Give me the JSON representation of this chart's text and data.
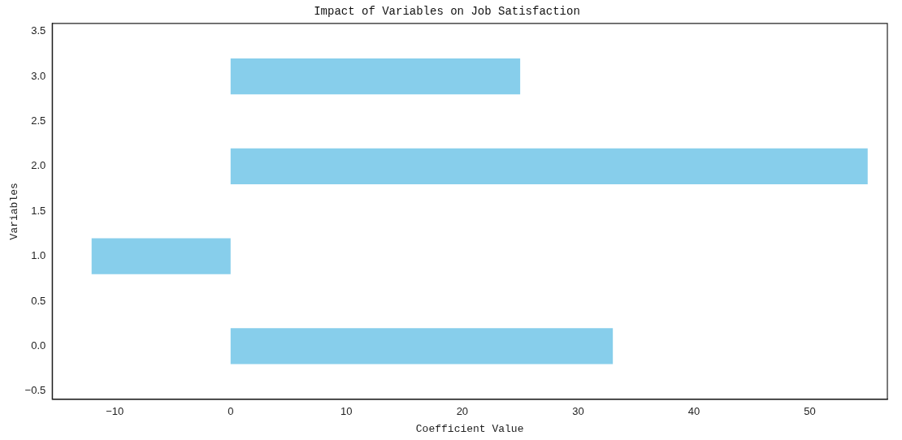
{
  "chart_data": {
    "type": "bar",
    "orientation": "horizontal",
    "title": "Impact of Variables on Job Satisfaction",
    "xlabel": "Coefficient Value",
    "ylabel": "Variables",
    "x": [
      0,
      1,
      2,
      3
    ],
    "values": [
      33,
      -12,
      55,
      25
    ],
    "color": "#87ceeb",
    "xlim": [
      -15.4,
      56.7
    ],
    "xticks": [
      {
        "value": -10,
        "label": "−10"
      },
      0,
      10,
      20,
      30,
      40,
      50
    ],
    "ylim": [
      -0.59,
      3.59
    ],
    "yticks": [
      {
        "value": -0.5,
        "label": "−0.5"
      },
      {
        "value": 0,
        "label": "0.0"
      },
      0.5,
      {
        "value": 1,
        "label": "1.0"
      },
      1.5,
      {
        "value": 2,
        "label": "2.0"
      },
      2.5,
      {
        "value": 3,
        "label": "3.0"
      },
      3.5
    ],
    "grid": false,
    "legend": false
  }
}
